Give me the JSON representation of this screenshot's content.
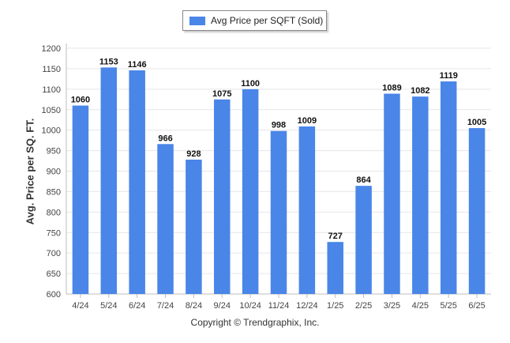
{
  "colors": {
    "bar": "#4a86e8",
    "grid": "#e6e6e6",
    "axis": "#bcbcbc"
  },
  "legend": {
    "label": "Avg Price per SQFT (Sold)"
  },
  "footer": {
    "copyright": "Copyright © Trendgraphix, Inc."
  },
  "chart_data": {
    "type": "bar",
    "categories": [
      "4/24",
      "5/24",
      "6/24",
      "7/24",
      "8/24",
      "9/24",
      "10/24",
      "11/24",
      "12/24",
      "1/25",
      "2/25",
      "3/25",
      "4/25",
      "5/25",
      "6/25"
    ],
    "series": [
      {
        "name": "Avg Price per SQFT (Sold)",
        "values": [
          1060,
          1153,
          1146,
          966,
          928,
          1075,
          1100,
          998,
          1009,
          727,
          864,
          1089,
          1082,
          1119,
          1005
        ]
      }
    ],
    "ylabel": "Avg. Price per SQ. FT.",
    "xlabel": "",
    "ylim": [
      600,
      1200
    ],
    "yticks": [
      600,
      650,
      700,
      750,
      800,
      850,
      900,
      950,
      1000,
      1050,
      1100,
      1150,
      1200
    ],
    "grid": true,
    "legend_position": "top-center",
    "data_labels": true
  }
}
